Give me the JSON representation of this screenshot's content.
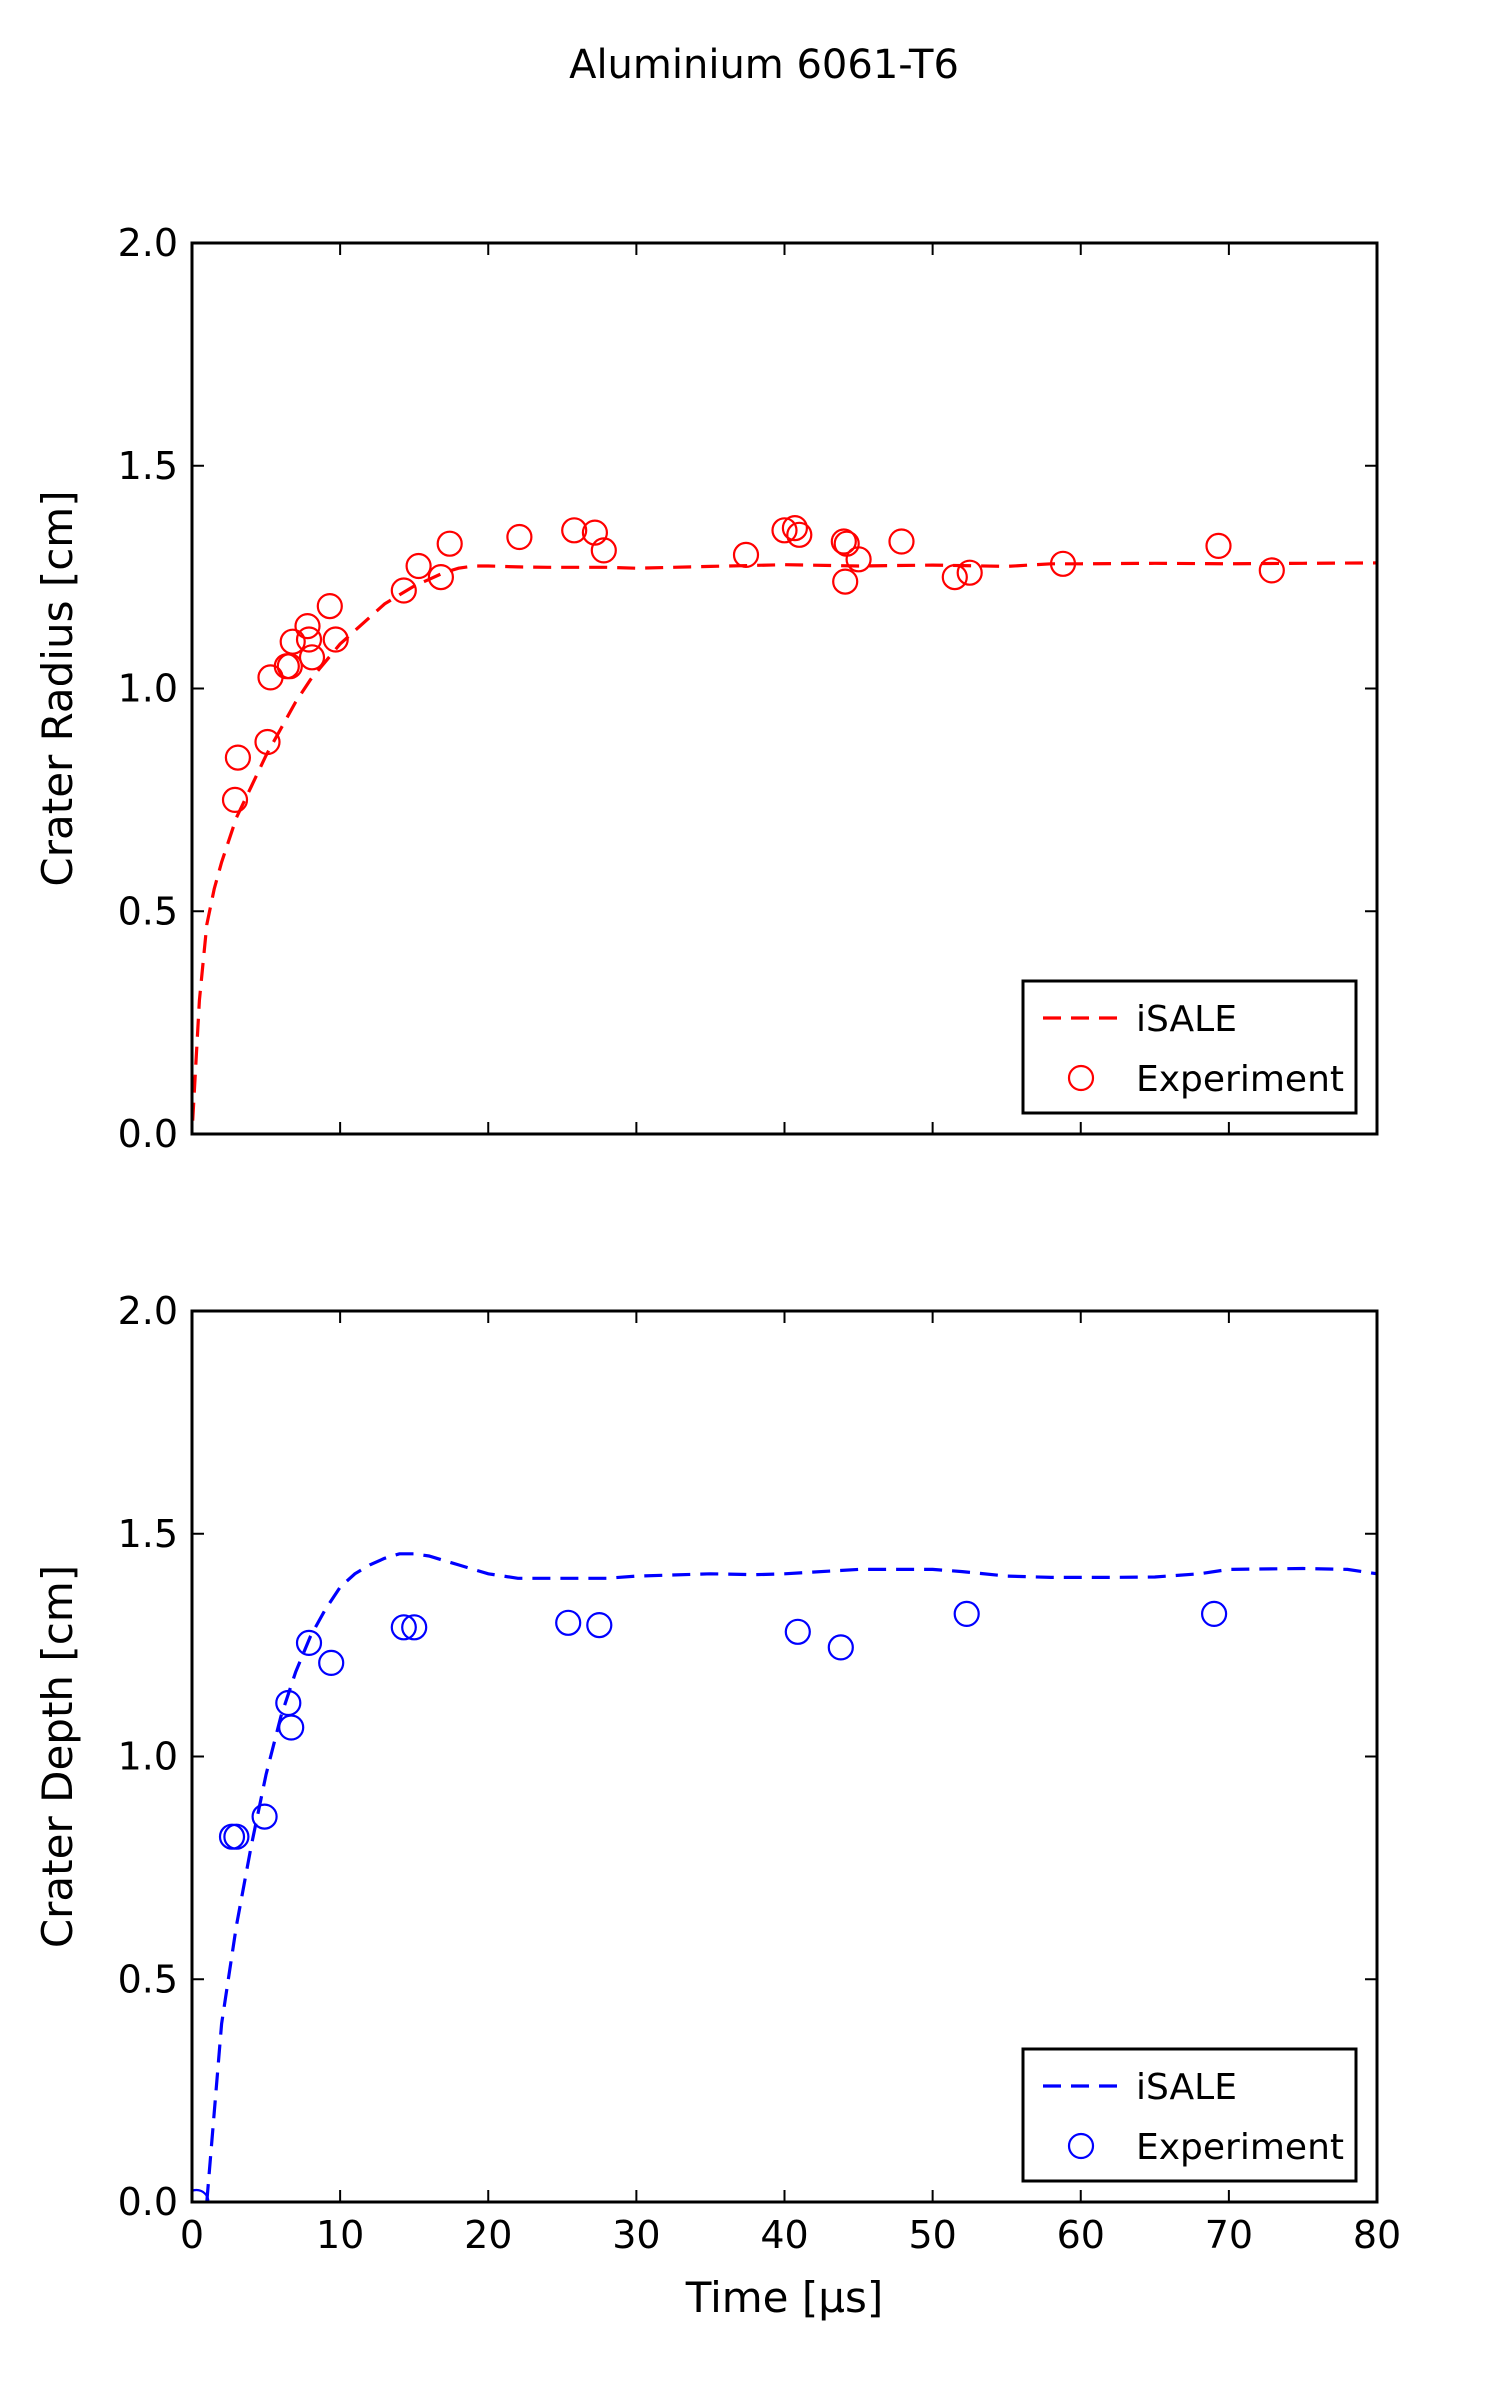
{
  "figure_title": "Aluminium 6061-T6",
  "chart_data": [
    {
      "type": "scatter",
      "title": "",
      "xlabel": "",
      "ylabel": "Crater Radius [cm]",
      "xlim": [
        0,
        80
      ],
      "ylim": [
        0.0,
        2.0
      ],
      "xticks": [
        0,
        10,
        20,
        30,
        40,
        50,
        60,
        70,
        80
      ],
      "yticks": [
        "0.0",
        "0.5",
        "1.0",
        "1.5",
        "2.0"
      ],
      "show_x_tick_labels": false,
      "grid": false,
      "legend_position": "lower-right",
      "color": "#ff0000",
      "series": [
        {
          "name": "iSALE",
          "kind": "line-dashed",
          "x": [
            0.05,
            0.5,
            1,
            1.5,
            2,
            3,
            4,
            5,
            6,
            7,
            8,
            9,
            10,
            11,
            12,
            13,
            14,
            15,
            16,
            17,
            18,
            19,
            20,
            22,
            24,
            26,
            28,
            30,
            35,
            40,
            45,
            50,
            55,
            58,
            60,
            65,
            70,
            75,
            80
          ],
          "y": [
            0.03,
            0.3,
            0.47,
            0.55,
            0.61,
            0.71,
            0.78,
            0.85,
            0.91,
            0.97,
            1.02,
            1.06,
            1.1,
            1.13,
            1.16,
            1.19,
            1.21,
            1.23,
            1.245,
            1.26,
            1.27,
            1.275,
            1.275,
            1.273,
            1.272,
            1.272,
            1.272,
            1.27,
            1.274,
            1.278,
            1.275,
            1.277,
            1.274,
            1.28,
            1.28,
            1.281,
            1.28,
            1.281,
            1.282
          ]
        },
        {
          "name": "Experiment",
          "kind": "markers-open-circle",
          "x": [
            2.9,
            3.1,
            5.1,
            5.3,
            6.4,
            6.6,
            6.8,
            7.8,
            7.9,
            8.1,
            9.3,
            9.7,
            14.3,
            15.3,
            16.8,
            17.4,
            22.1,
            25.8,
            27.2,
            27.8,
            37.4,
            40.0,
            40.7,
            41.0,
            44.0,
            44.1,
            44.2,
            45.0,
            47.9,
            51.5,
            52.5,
            58.8,
            69.3,
            72.9
          ],
          "y": [
            0.75,
            0.845,
            0.88,
            1.025,
            1.05,
            1.05,
            1.105,
            1.14,
            1.11,
            1.07,
            1.185,
            1.11,
            1.22,
            1.275,
            1.25,
            1.325,
            1.34,
            1.355,
            1.35,
            1.31,
            1.3,
            1.355,
            1.36,
            1.345,
            1.33,
            1.24,
            1.325,
            1.29,
            1.33,
            1.25,
            1.26,
            1.28,
            1.32,
            1.265
          ]
        }
      ]
    },
    {
      "type": "scatter",
      "title": "",
      "xlabel": "Time [μs]",
      "ylabel": "Crater Depth [cm]",
      "xlim": [
        0,
        80
      ],
      "ylim": [
        0.0,
        2.0
      ],
      "xticks": [
        0,
        10,
        20,
        30,
        40,
        50,
        60,
        70,
        80
      ],
      "yticks": [
        "0.0",
        "0.5",
        "1.0",
        "1.5",
        "2.0"
      ],
      "show_x_tick_labels": true,
      "grid": false,
      "legend_position": "lower-right",
      "color": "#0000ff",
      "series": [
        {
          "name": "iSALE",
          "kind": "line-dashed",
          "x": [
            1.0,
            1.5,
            2,
            3,
            4,
            5,
            6,
            7,
            8,
            9,
            10,
            11,
            12,
            13,
            14,
            15,
            16,
            17,
            18,
            19,
            20,
            22,
            24,
            26,
            28,
            30,
            35,
            38,
            40,
            45,
            50,
            52,
            55,
            58,
            62,
            65,
            68,
            70,
            75,
            78,
            80
          ],
          "y": [
            0.0,
            0.2,
            0.4,
            0.62,
            0.8,
            0.96,
            1.09,
            1.19,
            1.27,
            1.33,
            1.38,
            1.41,
            1.43,
            1.445,
            1.455,
            1.455,
            1.45,
            1.44,
            1.43,
            1.42,
            1.41,
            1.4,
            1.4,
            1.4,
            1.4,
            1.405,
            1.41,
            1.408,
            1.41,
            1.42,
            1.42,
            1.415,
            1.405,
            1.402,
            1.402,
            1.403,
            1.41,
            1.42,
            1.422,
            1.42,
            1.41
          ]
        },
        {
          "name": "Experiment",
          "kind": "markers-open-circle",
          "x": [
            0.3,
            2.7,
            3.0,
            4.9,
            6.5,
            6.7,
            7.9,
            9.4,
            14.3,
            15.0,
            25.4,
            27.5,
            40.9,
            43.8,
            52.3,
            69.0
          ],
          "y": [
            0.0,
            0.82,
            0.82,
            0.865,
            1.12,
            1.065,
            1.255,
            1.21,
            1.29,
            1.29,
            1.3,
            1.295,
            1.28,
            1.245,
            1.32,
            1.32
          ]
        }
      ]
    }
  ]
}
